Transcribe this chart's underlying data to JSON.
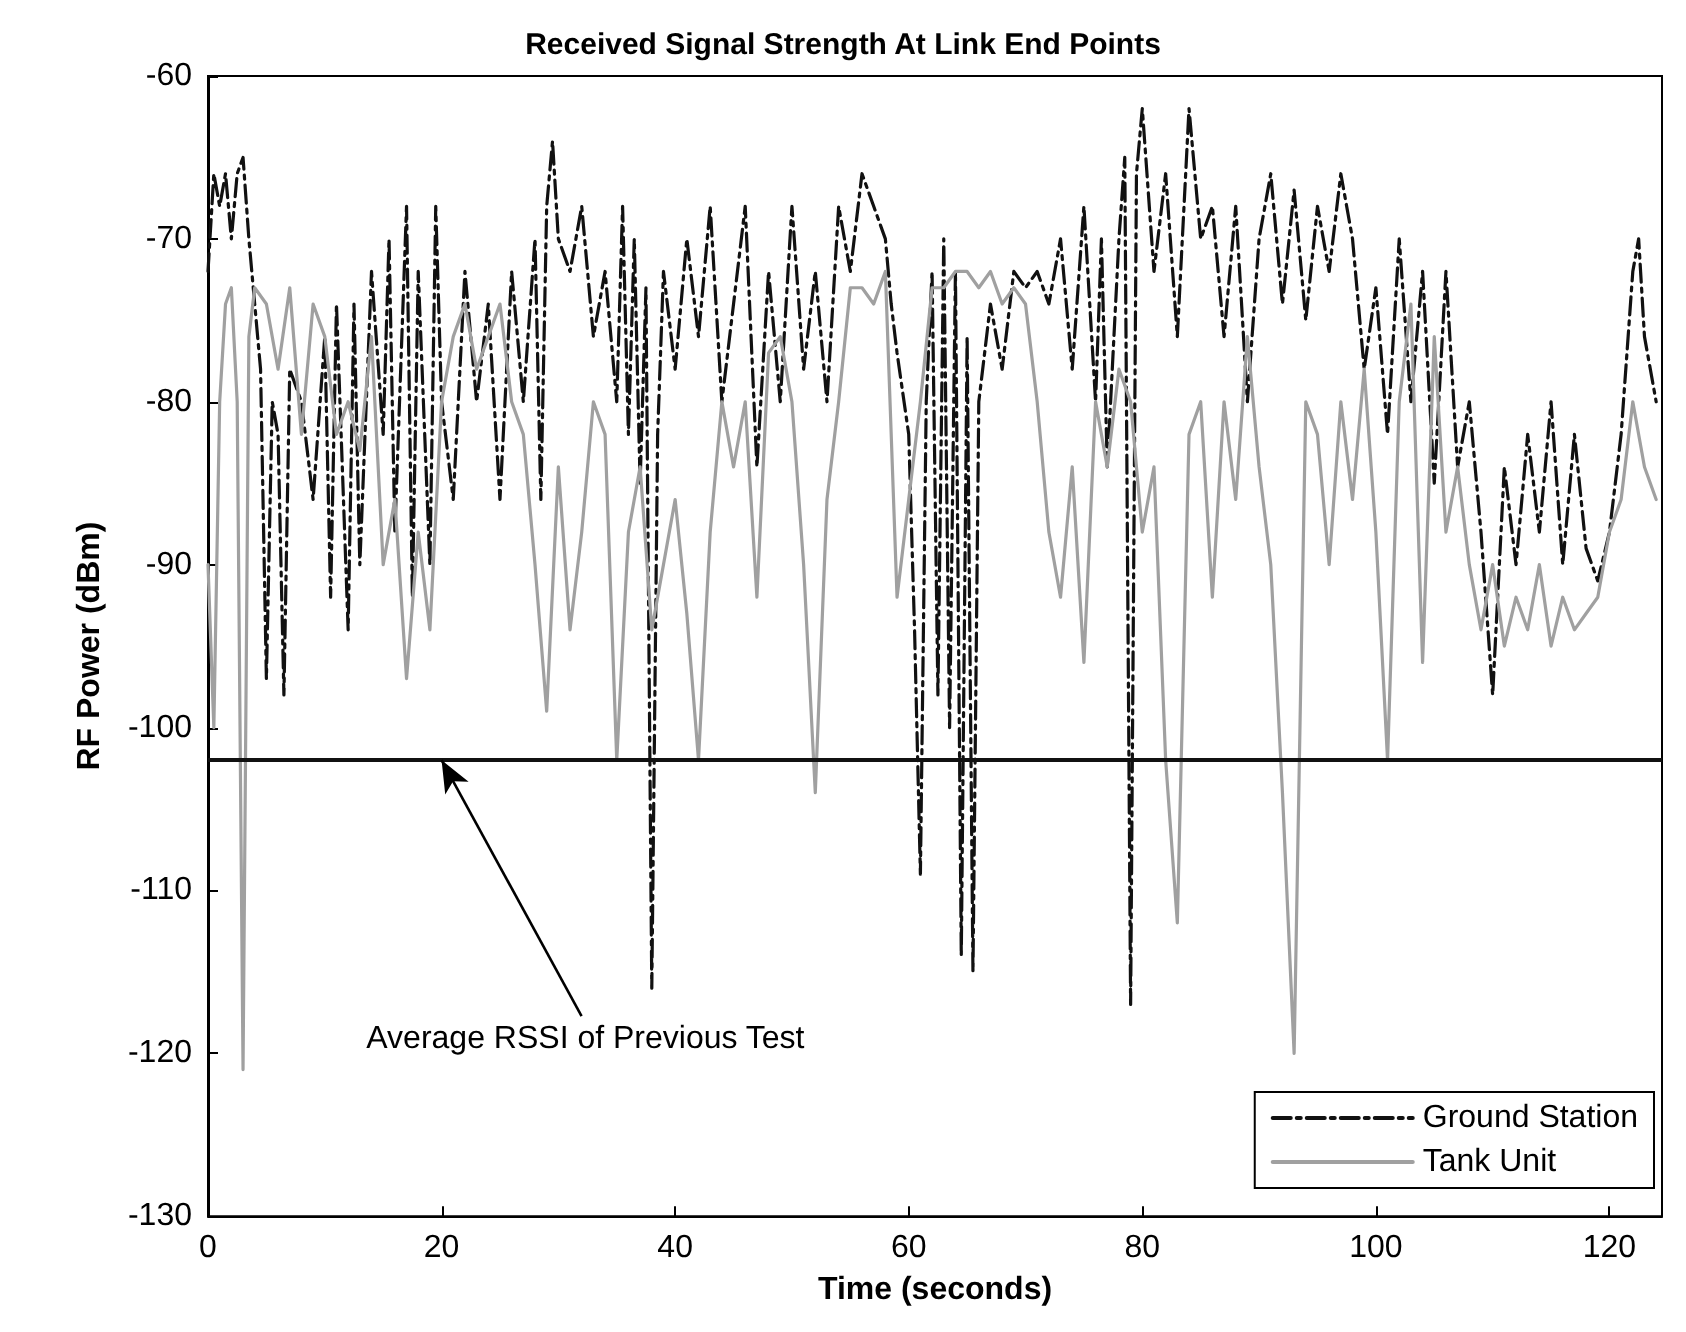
{
  "chart_data": {
    "type": "line",
    "title": "Received Signal Strength At Link End Points",
    "xlabel": "Time (seconds)",
    "ylabel": "RF Power (dBm)",
    "xlim": [
      0,
      124.5
    ],
    "xticks": [
      0,
      20,
      40,
      60,
      80,
      100,
      120
    ],
    "ylim": [
      -130,
      -60
    ],
    "yticks": [
      -130,
      -120,
      -110,
      -100,
      -90,
      -80,
      -70,
      -60
    ],
    "grid": false,
    "legend": "bottom right",
    "marker": "none",
    "series": [
      {
        "name": "Ground Station",
        "color": "#111111",
        "line_style": "dashed",
        "x": [
          0,
          0.5,
          1,
          1.5,
          2,
          2.5,
          3,
          3.5,
          4,
          4.5,
          5,
          5.5,
          6,
          6.5,
          7,
          8,
          9,
          10,
          10.5,
          11,
          12,
          12.5,
          13,
          14,
          15,
          15.5,
          16,
          17,
          17.5,
          18,
          19,
          19.5,
          20,
          21,
          22,
          23,
          24,
          25,
          26,
          27,
          28,
          28.5,
          29,
          29.5,
          30,
          31,
          32,
          33,
          34,
          35,
          35.5,
          36,
          36.5,
          37,
          37.5,
          38,
          38.5,
          39,
          40,
          41,
          42,
          43,
          44,
          45,
          46,
          47,
          48,
          49,
          50,
          51,
          52,
          53,
          54,
          55,
          56,
          57,
          58,
          58.5,
          59,
          60,
          60.5,
          61,
          61.5,
          62,
          62.5,
          63,
          63.5,
          64,
          64.5,
          65,
          65.5,
          66,
          67,
          68,
          69,
          70,
          71,
          72,
          73,
          74,
          75,
          76,
          76.5,
          77,
          78,
          78.5,
          79,
          79.5,
          80,
          81,
          82,
          83,
          84,
          85,
          86,
          87,
          88,
          89,
          90,
          91,
          92,
          93,
          94,
          95,
          96,
          97,
          98,
          99,
          100,
          101,
          102,
          103,
          104,
          105,
          106,
          107,
          108,
          109,
          110,
          111,
          112,
          113,
          114,
          115,
          116,
          117,
          118,
          119,
          120,
          121,
          122,
          122.5,
          123,
          124
        ],
        "values": [
          -72,
          -66,
          -68,
          -66,
          -70,
          -66,
          -65,
          -70,
          -74,
          -78,
          -97,
          -80,
          -82,
          -98,
          -78,
          -80,
          -86,
          -76,
          -92,
          -74,
          -94,
          -74,
          -90,
          -72,
          -82,
          -70,
          -88,
          -68,
          -92,
          -72,
          -90,
          -68,
          -80,
          -86,
          -72,
          -80,
          -74,
          -86,
          -72,
          -80,
          -70,
          -86,
          -68,
          -64,
          -70,
          -72,
          -68,
          -76,
          -72,
          -80,
          -68,
          -82,
          -70,
          -85,
          -73,
          -116,
          -82,
          -72,
          -78,
          -70,
          -76,
          -68,
          -80,
          -74,
          -68,
          -84,
          -72,
          -80,
          -68,
          -78,
          -72,
          -80,
          -68,
          -72,
          -66,
          -68,
          -70,
          -74,
          -77,
          -82,
          -94,
          -109,
          -80,
          -72,
          -98,
          -70,
          -100,
          -72,
          -114,
          -76,
          -115,
          -80,
          -74,
          -78,
          -72,
          -73,
          -72,
          -74,
          -70,
          -78,
          -68,
          -80,
          -70,
          -84,
          -70,
          -65,
          -117,
          -66,
          -62,
          -72,
          -66,
          -76,
          -62,
          -70,
          -68,
          -76,
          -68,
          -80,
          -70,
          -66,
          -74,
          -67,
          -75,
          -68,
          -72,
          -66,
          -70,
          -78,
          -73,
          -82,
          -70,
          -80,
          -72,
          -85,
          -72,
          -84,
          -80,
          -88,
          -98,
          -84,
          -90,
          -82,
          -88,
          -80,
          -90,
          -82,
          -89,
          -91,
          -88,
          -82,
          -72,
          -70,
          -76,
          -80
        ]
      },
      {
        "name": "Tank Unit",
        "color": "#a0a0a0",
        "line_style": "solid",
        "x": [
          0,
          0.5,
          1,
          1.5,
          2,
          2.5,
          3,
          3.5,
          4,
          5,
          6,
          7,
          8,
          9,
          10,
          11,
          12,
          13,
          14,
          15,
          16,
          17,
          18,
          19,
          20,
          21,
          22,
          23,
          24,
          25,
          26,
          27,
          28,
          29,
          30,
          31,
          32,
          33,
          34,
          35,
          36,
          37,
          38,
          39,
          40,
          41,
          42,
          43,
          44,
          45,
          46,
          47,
          48,
          49,
          50,
          51,
          52,
          53,
          54,
          55,
          56,
          57,
          58,
          59,
          60,
          61,
          62,
          63,
          64,
          65,
          66,
          67,
          68,
          69,
          70,
          71,
          72,
          73,
          74,
          75,
          76,
          77,
          78,
          79,
          80,
          81,
          82,
          83,
          84,
          85,
          86,
          87,
          88,
          89,
          90,
          91,
          92,
          93,
          94,
          95,
          96,
          97,
          98,
          99,
          100,
          101,
          102,
          103,
          104,
          105,
          106,
          107,
          108,
          109,
          110,
          111,
          112,
          113,
          114,
          115,
          116,
          117,
          118,
          119,
          120,
          121,
          122,
          123,
          124
        ],
        "values": [
          -90,
          -100,
          -80,
          -74,
          -73,
          -80,
          -121,
          -76,
          -73,
          -74,
          -78,
          -73,
          -82,
          -74,
          -76,
          -82,
          -80,
          -83,
          -76,
          -90,
          -86,
          -97,
          -88,
          -94,
          -80,
          -76,
          -74,
          -78,
          -76,
          -74,
          -80,
          -82,
          -90,
          -99,
          -84,
          -94,
          -88,
          -80,
          -82,
          -102,
          -88,
          -84,
          -94,
          -90,
          -86,
          -93,
          -102,
          -88,
          -80,
          -84,
          -80,
          -92,
          -77,
          -76,
          -80,
          -90,
          -104,
          -86,
          -80,
          -73,
          -73,
          -74,
          -72,
          -92,
          -86,
          -80,
          -73,
          -73,
          -72,
          -72,
          -73,
          -72,
          -74,
          -73,
          -74,
          -80,
          -88,
          -92,
          -84,
          -96,
          -80,
          -84,
          -78,
          -80,
          -88,
          -84,
          -102,
          -112,
          -82,
          -80,
          -92,
          -80,
          -86,
          -76,
          -84,
          -90,
          -104,
          -120,
          -80,
          -82,
          -90,
          -80,
          -86,
          -78,
          -88,
          -102,
          -80,
          -74,
          -96,
          -76,
          -88,
          -84,
          -90,
          -94,
          -90,
          -95,
          -92,
          -94,
          -90,
          -95,
          -92,
          -94,
          -93,
          -92,
          -88,
          -86,
          -80,
          -84,
          -86
        ]
      }
    ],
    "ref_lines": [
      {
        "axis": "y",
        "value": -102,
        "color": "#111111"
      }
    ],
    "annotations": [
      {
        "text": "Average RSSI of Previous Test",
        "x": 20,
        "y": -102
      }
    ]
  }
}
